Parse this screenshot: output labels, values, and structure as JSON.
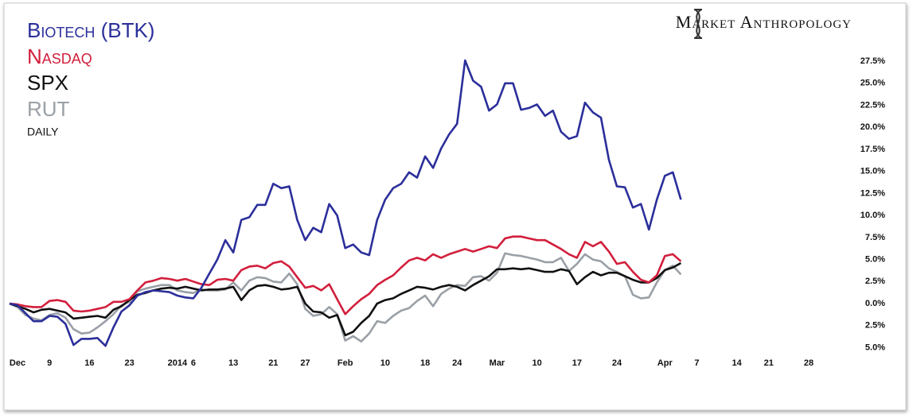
{
  "chart_data": {
    "type": "line",
    "brand": "Market Anthropology",
    "subtitle": "DAILY",
    "legend": "top-left",
    "grid": false,
    "categories": [
      "Dec",
      null,
      null,
      null,
      null,
      "9",
      null,
      null,
      null,
      null,
      "16",
      null,
      null,
      null,
      null,
      "23",
      null,
      null,
      null,
      null,
      null,
      "2014",
      null,
      "6",
      null,
      null,
      null,
      null,
      "13",
      null,
      null,
      null,
      null,
      "21",
      null,
      null,
      null,
      "27",
      null,
      null,
      null,
      null,
      "Feb",
      null,
      null,
      null,
      null,
      "10",
      null,
      null,
      null,
      null,
      "18",
      null,
      null,
      null,
      "24",
      null,
      null,
      null,
      null,
      "Mar",
      null,
      null,
      null,
      null,
      "10",
      null,
      null,
      null,
      null,
      "17",
      null,
      null,
      null,
      null,
      "24",
      null,
      null,
      null,
      null,
      null,
      "Apr",
      null,
      null,
      null,
      "7",
      null,
      null,
      null,
      null,
      "14",
      null,
      null,
      null,
      "21",
      null,
      null,
      null,
      null,
      "28",
      null,
      null
    ],
    "ylim": [
      -5.5,
      28.5
    ],
    "yticks": [
      {
        "value": -5,
        "label": "5.0%"
      },
      {
        "value": -2.5,
        "label": "2.5%"
      },
      {
        "value": 0,
        "label": "0.0%"
      },
      {
        "value": 2.5,
        "label": "2.5%"
      },
      {
        "value": 5,
        "label": "5.0%"
      },
      {
        "value": 7.5,
        "label": "7.5%"
      },
      {
        "value": 10,
        "label": "10.0%"
      },
      {
        "value": 12.5,
        "label": "12.5%"
      },
      {
        "value": 15,
        "label": "15.0%"
      },
      {
        "value": 17.5,
        "label": "17.5%"
      },
      {
        "value": 20,
        "label": "20.0%"
      },
      {
        "value": 22.5,
        "label": "22.5%"
      },
      {
        "value": 25,
        "label": "25.0%"
      },
      {
        "value": 27.5,
        "label": "27.5%"
      }
    ],
    "series": [
      {
        "name": "Biotech (BTK)",
        "color": "#2b2f9a",
        "values": [
          0,
          -0.2,
          -1.1,
          -2,
          -2,
          -1.4,
          -1.5,
          -2.3,
          -4.7,
          -4,
          -4,
          -3.9,
          -4.8,
          -2.7,
          -0.9,
          -0.2,
          0.9,
          1.3,
          1.5,
          1.4,
          1.3,
          0.9,
          0.7,
          0.6,
          1.8,
          3.4,
          5,
          7.2,
          5.8,
          9.5,
          9.8,
          11.2,
          11.2,
          13.6,
          13.1,
          13.3,
          9.5,
          7.2,
          8.6,
          8.1,
          11.3,
          10,
          6.3,
          6.7,
          5.8,
          5.5,
          9.5,
          11.8,
          13.1,
          13.6,
          14.9,
          14.3,
          16.7,
          15.4,
          17.6,
          19.2,
          20.4,
          27.6,
          25.3,
          24.6,
          21.9,
          22.6,
          25,
          25,
          22,
          22.2,
          22.6,
          21.3,
          21.9,
          19.5,
          18.7,
          19,
          22.8,
          21.7,
          21.1,
          16.3,
          13.3,
          13.2,
          10.9,
          11.3,
          8.4,
          11.8,
          14.5,
          14.9,
          11.8,
          null,
          null,
          null,
          null,
          null,
          null,
          null,
          null,
          null,
          null,
          null,
          null,
          null,
          null,
          null,
          null,
          null,
          null
        ]
      },
      {
        "name": "Nasdaq",
        "color": "#d21f3c",
        "values": [
          0,
          -0.1,
          -0.3,
          -0.4,
          -0.4,
          0.3,
          0.4,
          0.2,
          -0.8,
          -0.9,
          -0.8,
          -0.6,
          -0.4,
          0.2,
          0.2,
          0.5,
          1.5,
          2.4,
          2.6,
          2.9,
          2.8,
          2.6,
          2.8,
          2.5,
          2.2,
          2.1,
          2.7,
          2.8,
          2.6,
          3.8,
          4.2,
          4.3,
          4,
          4.6,
          4.8,
          4.2,
          3,
          1.8,
          2,
          1.5,
          2.2,
          0.5,
          -1.2,
          -0.3,
          0.5,
          1.1,
          2.1,
          2.7,
          3.2,
          4.1,
          4.9,
          5.2,
          4.9,
          5.6,
          5.2,
          5.6,
          5.9,
          6.2,
          5.9,
          6.2,
          6.5,
          6.3,
          7.4,
          7.6,
          7.6,
          7.4,
          7.2,
          7.2,
          6.7,
          6.2,
          5.6,
          5.2,
          7,
          6.5,
          7,
          5.9,
          4.5,
          4.7,
          3.6,
          2.7,
          2.4,
          3.2,
          5.4,
          5.6,
          4.8,
          null,
          null,
          null,
          null,
          null,
          null,
          null,
          null,
          null,
          null,
          null,
          null,
          null,
          null,
          null,
          null,
          null,
          null
        ]
      },
      {
        "name": "SPX",
        "color": "#111111",
        "values": [
          0,
          -0.3,
          -0.6,
          -1,
          -0.7,
          -0.6,
          -0.8,
          -1,
          -1.7,
          -1.6,
          -1.5,
          -1.4,
          -1.6,
          -0.7,
          -0.3,
          0.4,
          1,
          1.2,
          1.5,
          1.7,
          1.8,
          1.7,
          1.9,
          1.7,
          1.5,
          1.6,
          1.6,
          1.7,
          1.9,
          0.4,
          1.5,
          2,
          2.1,
          1.9,
          1.6,
          1.7,
          1.9,
          0,
          -0.9,
          -1,
          -1.6,
          -1.3,
          -3.6,
          -3.2,
          -2.2,
          -1.4,
          0,
          0.4,
          0.6,
          1.1,
          1.5,
          1.9,
          1.8,
          1.6,
          1.9,
          2.1,
          1.9,
          1.5,
          2.1,
          2.6,
          3.1,
          3.9,
          3.9,
          4,
          3.9,
          4,
          3.8,
          3.6,
          3.6,
          3.9,
          3.7,
          2.2,
          3,
          3.6,
          3.2,
          3.5,
          3.5,
          3.1,
          2.7,
          2.4,
          2.4,
          2.9,
          3.8,
          4.1,
          4.6,
          null,
          null,
          null,
          null,
          null,
          null,
          null,
          null,
          null,
          null,
          null,
          null,
          null,
          null,
          null,
          null,
          null,
          null
        ]
      },
      {
        "name": "RUT",
        "color": "#9aa0a6",
        "values": [
          0,
          -0.4,
          -1.3,
          -1.7,
          -1.9,
          -1.3,
          -1.1,
          -1.6,
          -2.9,
          -3.4,
          -3.3,
          -2.7,
          -2,
          -1.2,
          -0.2,
          0.2,
          1.4,
          1.7,
          1.9,
          2.1,
          2.1,
          1.5,
          1.3,
          1.2,
          1.6,
          1.5,
          1.5,
          1.6,
          2.4,
          1.5,
          2.6,
          3,
          2.9,
          2.5,
          2.4,
          3.4,
          2.2,
          -0.6,
          -1.4,
          -1.2,
          -0.4,
          -1.2,
          -4.2,
          -3.7,
          -4.3,
          -3.4,
          -2,
          -2.2,
          -1.4,
          -0.8,
          -0.5,
          0.3,
          0.9,
          -0.3,
          1.1,
          1.7,
          2.1,
          2,
          3,
          3.1,
          2.6,
          3.5,
          5.7,
          5.5,
          5.4,
          5.2,
          5,
          4.7,
          4.7,
          5.2,
          3.7,
          4.5,
          5.6,
          5,
          4.8,
          4,
          3.6,
          3.1,
          1,
          0.6,
          0.7,
          2.4,
          3.8,
          4.3,
          3.3,
          null,
          null,
          null,
          null,
          null,
          null,
          null,
          null,
          null,
          null,
          null,
          null,
          null,
          null,
          null,
          null,
          null,
          null
        ]
      }
    ]
  }
}
